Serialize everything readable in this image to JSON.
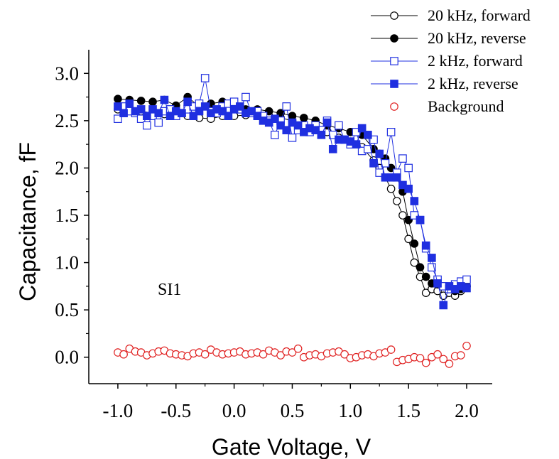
{
  "chart_data": {
    "type": "scatter",
    "xlabel": "Gate Voltage, V",
    "ylabel": "Capacitance, fF",
    "xlim": [
      -1.25,
      2.22
    ],
    "ylim": [
      -0.28,
      3.25
    ],
    "xticks": [
      -1.0,
      -0.5,
      0.0,
      0.5,
      1.0,
      1.5,
      2.0
    ],
    "yticks": [
      0.0,
      0.5,
      1.0,
      1.5,
      2.0,
      2.5,
      3.0
    ],
    "xtick_labels": [
      "-1.0",
      "-0.5",
      "0.0",
      "0.5",
      "1.0",
      "1.5",
      "2.0"
    ],
    "ytick_labels": [
      "0.0",
      "0.5",
      "1.0",
      "1.5",
      "2.0",
      "2.5",
      "3.0"
    ],
    "grid": false,
    "legend_position": "top-right",
    "annotation": "SI1",
    "series": [
      {
        "name": "20 kHz, forward",
        "marker": "circle-open",
        "color": "#000000",
        "connected": true,
        "x": [
          -1.0,
          -0.9,
          -0.8,
          -0.7,
          -0.6,
          -0.5,
          -0.4,
          -0.3,
          -0.2,
          -0.1,
          0.0,
          0.1,
          0.2,
          0.3,
          0.4,
          0.5,
          0.6,
          0.7,
          0.8,
          0.9,
          1.0,
          1.1,
          1.2,
          1.25,
          1.3,
          1.35,
          1.4,
          1.45,
          1.5,
          1.55,
          1.6,
          1.65,
          1.7,
          1.75,
          1.8,
          1.85,
          1.9,
          1.95,
          2.0
        ],
        "y": [
          2.62,
          2.62,
          2.6,
          2.58,
          2.57,
          2.58,
          2.55,
          2.53,
          2.52,
          2.55,
          2.55,
          2.56,
          2.55,
          2.55,
          2.53,
          2.5,
          2.45,
          2.43,
          2.38,
          2.32,
          2.28,
          2.22,
          2.08,
          2.0,
          1.9,
          1.78,
          1.65,
          1.5,
          1.25,
          1.0,
          0.85,
          0.68,
          0.72,
          0.7,
          0.65,
          0.68,
          0.65,
          0.7,
          0.75
        ]
      },
      {
        "name": "20 kHz, reverse",
        "marker": "circle-filled",
        "color": "#000000",
        "connected": true,
        "x": [
          -1.0,
          -0.9,
          -0.8,
          -0.7,
          -0.6,
          -0.5,
          -0.4,
          -0.3,
          -0.2,
          -0.1,
          0.0,
          0.1,
          0.2,
          0.3,
          0.4,
          0.5,
          0.6,
          0.7,
          0.8,
          0.9,
          1.0,
          1.1,
          1.2,
          1.25,
          1.3,
          1.35,
          1.4,
          1.45,
          1.5,
          1.55,
          1.6,
          1.65,
          1.7,
          1.75,
          1.8,
          1.85,
          1.9,
          1.95,
          2.0
        ],
        "y": [
          2.73,
          2.72,
          2.71,
          2.7,
          2.72,
          2.66,
          2.75,
          2.65,
          2.68,
          2.7,
          2.65,
          2.62,
          2.62,
          2.6,
          2.58,
          2.55,
          2.53,
          2.5,
          2.45,
          2.42,
          2.38,
          2.35,
          2.2,
          2.15,
          2.1,
          2.0,
          1.9,
          1.75,
          1.45,
          1.2,
          0.95,
          0.85,
          0.78,
          0.77,
          0.75,
          0.72,
          0.7,
          0.72,
          0.75
        ]
      },
      {
        "name": "2 kHz, forward",
        "marker": "square-open",
        "color": "#1f2fe0",
        "connected": true,
        "x": [
          -1.0,
          -0.95,
          -0.9,
          -0.85,
          -0.8,
          -0.75,
          -0.7,
          -0.65,
          -0.6,
          -0.55,
          -0.5,
          -0.45,
          -0.4,
          -0.35,
          -0.3,
          -0.25,
          -0.2,
          -0.15,
          -0.1,
          -0.05,
          0.0,
          0.05,
          0.1,
          0.15,
          0.2,
          0.25,
          0.3,
          0.35,
          0.4,
          0.45,
          0.5,
          0.55,
          0.6,
          0.65,
          0.7,
          0.75,
          0.8,
          0.85,
          0.9,
          0.95,
          1.0,
          1.05,
          1.1,
          1.15,
          1.2,
          1.25,
          1.3,
          1.35,
          1.4,
          1.45,
          1.5,
          1.55,
          1.6,
          1.65,
          1.7,
          1.75,
          1.8,
          1.85,
          1.9,
          1.95,
          2.0
        ],
        "y": [
          2.52,
          2.65,
          2.6,
          2.58,
          2.52,
          2.45,
          2.55,
          2.48,
          2.6,
          2.62,
          2.55,
          2.58,
          2.62,
          2.65,
          2.68,
          2.95,
          2.6,
          2.58,
          2.65,
          2.68,
          2.7,
          2.62,
          2.75,
          2.58,
          2.6,
          2.55,
          2.5,
          2.35,
          2.5,
          2.65,
          2.32,
          2.4,
          2.45,
          2.38,
          2.45,
          2.4,
          2.5,
          2.35,
          2.45,
          2.3,
          2.25,
          2.38,
          2.18,
          2.2,
          2.3,
          1.95,
          2.05,
          2.38,
          1.95,
          2.1,
          2.0,
          1.5,
          1.45,
          1.15,
          0.95,
          0.82,
          0.75,
          0.72,
          0.77,
          0.8,
          0.82
        ]
      },
      {
        "name": "2 kHz, reverse",
        "marker": "square-filled",
        "color": "#1f2fe0",
        "connected": true,
        "x": [
          -1.0,
          -0.95,
          -0.9,
          -0.85,
          -0.8,
          -0.75,
          -0.7,
          -0.65,
          -0.6,
          -0.55,
          -0.5,
          -0.45,
          -0.4,
          -0.35,
          -0.3,
          -0.25,
          -0.2,
          -0.15,
          -0.1,
          -0.05,
          0.0,
          0.05,
          0.1,
          0.15,
          0.2,
          0.25,
          0.3,
          0.35,
          0.4,
          0.45,
          0.5,
          0.55,
          0.6,
          0.65,
          0.7,
          0.75,
          0.8,
          0.85,
          0.9,
          0.95,
          1.0,
          1.05,
          1.1,
          1.15,
          1.2,
          1.25,
          1.3,
          1.35,
          1.4,
          1.45,
          1.5,
          1.55,
          1.6,
          1.65,
          1.7,
          1.75,
          1.8,
          1.85,
          1.9,
          1.95,
          2.0
        ],
        "y": [
          2.65,
          2.58,
          2.68,
          2.6,
          2.62,
          2.55,
          2.62,
          2.58,
          2.72,
          2.55,
          2.6,
          2.58,
          2.7,
          2.55,
          2.6,
          2.65,
          2.58,
          2.62,
          2.6,
          2.55,
          2.62,
          2.65,
          2.58,
          2.6,
          2.55,
          2.5,
          2.48,
          2.52,
          2.45,
          2.4,
          2.48,
          2.45,
          2.38,
          2.42,
          2.4,
          2.35,
          2.48,
          2.2,
          2.3,
          2.3,
          2.28,
          2.25,
          2.42,
          2.35,
          2.05,
          2.15,
          1.9,
          1.9,
          1.9,
          1.82,
          1.78,
          1.65,
          1.45,
          1.18,
          1.05,
          0.78,
          0.55,
          0.75,
          0.72,
          0.75,
          0.73
        ]
      },
      {
        "name": "Background",
        "marker": "circle-open",
        "color": "#e02020",
        "connected": false,
        "x": [
          -1.0,
          -0.95,
          -0.9,
          -0.85,
          -0.8,
          -0.75,
          -0.7,
          -0.65,
          -0.6,
          -0.55,
          -0.5,
          -0.45,
          -0.4,
          -0.35,
          -0.3,
          -0.25,
          -0.2,
          -0.15,
          -0.1,
          -0.05,
          0.0,
          0.05,
          0.1,
          0.15,
          0.2,
          0.25,
          0.3,
          0.35,
          0.4,
          0.45,
          0.5,
          0.55,
          0.6,
          0.65,
          0.7,
          0.75,
          0.8,
          0.85,
          0.9,
          0.95,
          1.0,
          1.05,
          1.1,
          1.15,
          1.2,
          1.25,
          1.3,
          1.35,
          1.4,
          1.45,
          1.5,
          1.55,
          1.6,
          1.65,
          1.7,
          1.75,
          1.8,
          1.85,
          1.9,
          1.95,
          2.0
        ],
        "y": [
          0.05,
          0.03,
          0.09,
          0.06,
          0.05,
          0.02,
          0.04,
          0.06,
          0.07,
          0.04,
          0.03,
          0.02,
          0.01,
          0.04,
          0.05,
          0.03,
          0.08,
          0.05,
          0.03,
          0.04,
          0.05,
          0.06,
          0.03,
          0.04,
          0.05,
          0.03,
          0.07,
          0.05,
          0.02,
          0.06,
          0.05,
          0.09,
          0.0,
          0.02,
          0.03,
          0.01,
          0.04,
          0.05,
          0.06,
          0.03,
          -0.01,
          0.0,
          0.02,
          0.03,
          0.01,
          0.04,
          0.05,
          0.08,
          -0.05,
          -0.03,
          -0.02,
          0.0,
          -0.01,
          -0.06,
          0.0,
          0.03,
          -0.02,
          -0.07,
          0.01,
          0.02,
          0.12
        ]
      }
    ]
  }
}
